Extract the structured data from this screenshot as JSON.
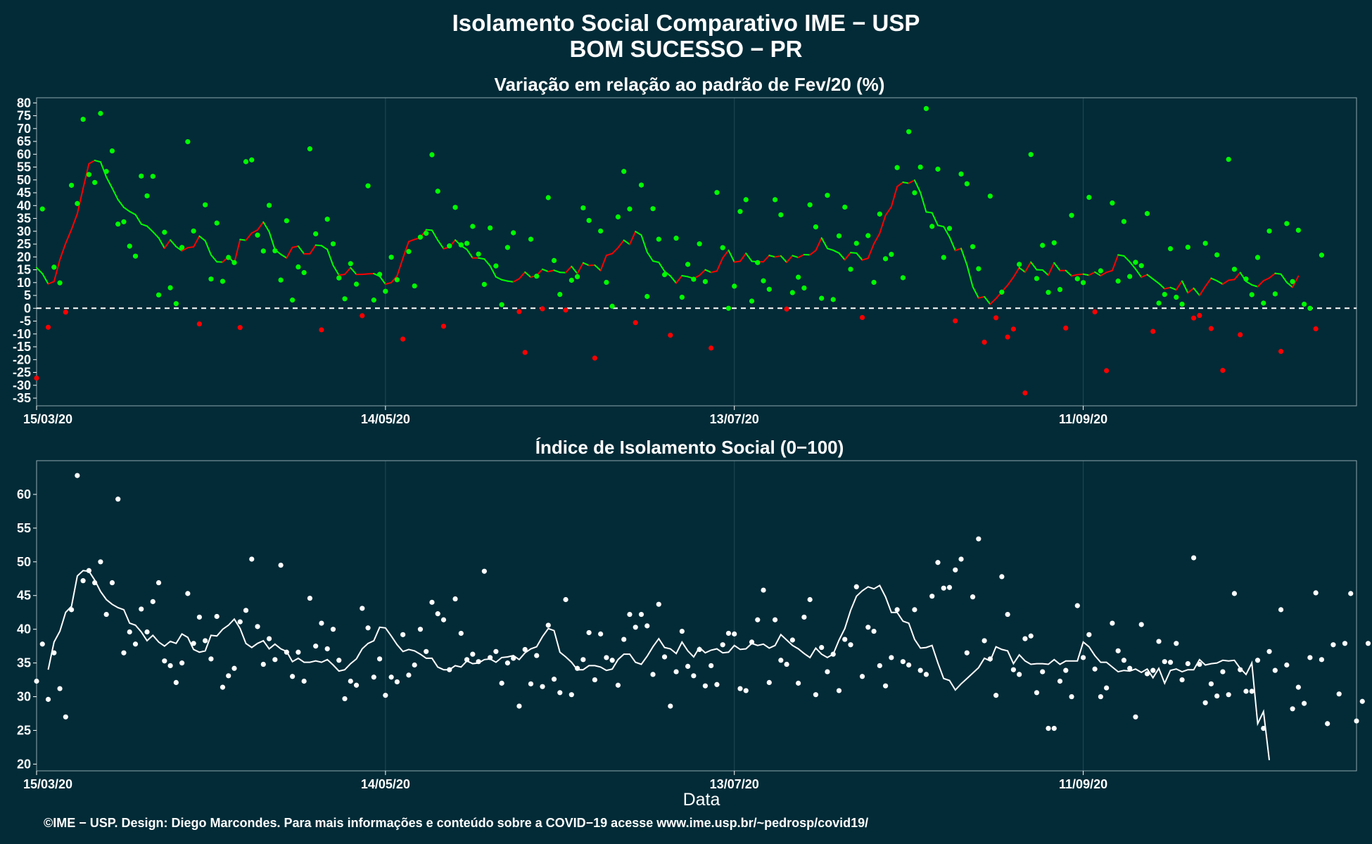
{
  "header": {
    "title_line1": "Isolamento Social Comparativo IME − USP",
    "title_line2": "BOM SUCESSO − PR"
  },
  "footer": {
    "credit": "©IME − USP. Design: Diego Marcondes. Para mais informações e conteúdo sobre a COVID−19 acesse www.ime.usp.br/~pedrosp/covid19/"
  },
  "colors": {
    "background": "#022b37",
    "positive": "#00ff00",
    "negative": "#ff0000",
    "index_series": "#ffffff",
    "grid": "#1d4450"
  },
  "chart_data": [
    {
      "type": "scatter",
      "title": "Variação em relação ao padrão de Fev/20 (%)",
      "xlabel": "",
      "ylabel": "",
      "x_tick_labels": [
        "15/03/20",
        "14/05/20",
        "13/07/20",
        "11/09/20"
      ],
      "x_tick_days": [
        0,
        60,
        120,
        180
      ],
      "xlim_days": [
        0,
        227
      ],
      "ylim": [
        -38,
        82
      ],
      "y_ticks": [
        80,
        75,
        70,
        65,
        60,
        55,
        50,
        45,
        40,
        35,
        30,
        25,
        20,
        15,
        10,
        5,
        0,
        -5,
        -10,
        -15,
        -20,
        -25,
        -30,
        -35
      ],
      "reference_line_y": 0,
      "daily_values": [
        -27.2,
        38.7,
        -7.4,
        16.0,
        9.9,
        -1.5,
        47.9,
        40.8,
        73.6,
        52.1,
        49.0,
        75.9,
        53.3,
        61.3,
        32.8,
        33.7,
        24.2,
        20.3,
        51.5,
        43.8,
        51.4,
        5.2,
        29.6,
        8.0,
        1.8,
        23.7,
        64.9,
        30.1,
        -6.1,
        40.3,
        11.4,
        33.2,
        10.5,
        19.8,
        17.8,
        -7.5,
        57.1,
        57.8,
        28.5,
        22.3,
        40.1,
        22.4,
        11.0,
        34.1,
        3.2,
        16.1,
        13.9,
        62.1,
        29.0,
        -8.4,
        34.7,
        25.1,
        11.8,
        3.7,
        17.4,
        9.4,
        -2.9,
        47.7,
        3.2,
        13.2,
        6.6,
        19.9,
        11.1,
        -12.0,
        22.1,
        8.7,
        27.7,
        29.2,
        59.8,
        45.6,
        -7.0,
        24.3,
        39.3,
        24.7,
        25.3,
        31.9,
        21.1,
        9.3,
        31.3,
        16.5,
        1.4,
        23.7,
        29.4,
        -1.3,
        -17.2,
        26.9,
        12.5,
        -0.2,
        43.1,
        18.6,
        5.4,
        -0.7,
        10.9,
        12.3,
        39.1,
        34.2,
        -19.4,
        30.1,
        10.1,
        0.8,
        35.6,
        53.3,
        38.7,
        -5.6,
        48.0,
        4.6,
        38.8,
        26.9,
        13.1,
        -10.5,
        27.3,
        4.3,
        17.1,
        11.3,
        25.1,
        10.4,
        -15.5,
        45.1,
        23.6,
        0.0,
        8.6,
        37.7,
        42.3,
        2.8,
        17.8,
        10.7,
        7.4,
        42.3,
        36.4,
        -0.3,
        6.1,
        12.1,
        7.9,
        40.3,
        31.7,
        3.9,
        44.0,
        3.4,
        28.2,
        39.4,
        15.2,
        25.3,
        -3.6,
        28.3,
        10.1,
        36.7,
        19.3,
        21.0,
        54.8,
        11.9,
        68.8,
        45.0,
        55.0,
        77.8,
        31.9,
        54.2,
        19.8,
        31.1,
        -4.9,
        52.3,
        48.5,
        24.0,
        15.4,
        -13.2,
        43.7,
        -3.7,
        6.3,
        -11.2,
        -8.1,
        17.1,
        -33.0,
        59.9,
        11.6,
        24.5,
        6.2,
        25.5,
        7.3,
        -7.7,
        36.2,
        11.5,
        10.0,
        43.2,
        -1.4,
        14.6,
        -24.3,
        41.0,
        10.6,
        33.8,
        12.4,
        17.9,
        16.6,
        36.9,
        -9.0,
        2.0,
        5.4,
        23.2,
        4.3,
        1.6,
        23.8,
        -3.8,
        -2.8,
        25.3,
        -7.9,
        20.8,
        -24.2,
        58.0,
        15.2,
        -10.3,
        11.4,
        5.3,
        19.8,
        2.0,
        30.1,
        5.6,
        -16.8,
        33.0,
        10.4,
        30.4,
        1.6,
        0.0,
        -8.0,
        20.7
      ],
      "moving_average_days_start": 0,
      "moving_average": [
        15.8,
        13.5,
        9.5,
        10.4,
        18.9,
        25.3,
        30.7,
        36.8,
        46.7,
        56.3,
        57.6,
        57.0,
        51.1,
        46.8,
        42.3,
        39.3,
        37.7,
        36.5,
        32.8,
        32.0,
        29.8,
        27.4,
        23.4,
        26.6,
        24.0,
        22.4,
        23.6,
        23.9,
        28.1,
        26.3,
        20.8,
        18.1,
        18.0,
        20.1,
        17.6,
        26.8,
        26.5,
        29.3,
        30.5,
        33.6,
        29.8,
        22.8,
        21.0,
        19.6,
        23.7,
        24.2,
        21.2,
        21.2,
        24.6,
        24.4,
        22.9,
        16.7,
        12.9,
        13.2,
        15.8,
        13.2,
        13.2,
        13.4,
        13.5,
        12.5,
        9.4,
        10.0,
        12.6,
        19.5,
        26.0,
        26.8,
        27.5,
        30.6,
        30.4,
        26.5,
        23.2,
        23.8,
        26.6,
        24.4,
        22.9,
        19.6,
        19.6,
        19.2,
        16.5,
        12.2,
        11.1,
        10.6,
        10.3,
        11.5,
        14.1,
        12.1,
        12.8,
        15.2,
        14.3,
        14.8,
        14.0,
        13.9,
        16.3,
        13.5,
        17.7,
        16.7,
        16.8,
        14.7,
        20.6,
        21.3,
        23.6,
        26.5,
        24.9,
        29.9,
        28.5,
        21.9,
        18.4,
        17.9,
        14.4,
        12.6,
        9.8,
        12.7,
        12.3,
        11.6,
        12.8,
        15.0,
        14.0,
        14.5,
        19.6,
        22.6,
        18.0,
        18.3,
        21.4,
        18.3,
        18.1,
        18.1,
        20.6,
        20.0,
        20.4,
        17.9,
        20.5,
        19.8,
        20.9,
        20.8,
        22.5,
        27.4,
        23.3,
        22.6,
        21.5,
        18.9,
        21.7,
        21.5,
        18.8,
        19.5,
        25.1,
        29.2,
        36.2,
        39.5,
        47.4,
        49.1,
        48.7,
        49.9,
        45.1,
        37.5,
        37.2,
        32.3,
        31.8,
        27.8,
        22.5,
        23.3,
        16.9,
        8.4,
        4.0,
        4.5,
        1.6,
        3.8,
        6.4,
        9.0,
        12.1,
        15.8,
        14.1,
        18.0,
        15.0,
        14.9,
        12.9,
        17.7,
        14.7,
        14.7,
        12.6,
        13.1,
        13.3,
        12.9,
        14.1,
        12.7,
        14.0,
        14.7,
        20.8,
        20.4,
        18.1,
        15.3,
        12.1,
        13.1,
        11.4,
        9.7,
        7.6,
        8.1,
        7.2,
        10.6,
        6.0,
        7.8,
        5.0,
        8.5,
        11.7,
        10.7,
        9.4,
        10.9,
        11.2,
        13.9,
        10.5,
        9.1,
        8.4,
        10.7,
        11.8,
        13.6,
        13.3,
        10.1,
        8.2,
        12.5
      ]
    },
    {
      "type": "scatter",
      "title": "Índice de Isolamento Social (0−100)",
      "xlabel": "Data",
      "ylabel": "",
      "x_tick_labels": [
        "15/03/20",
        "14/05/20",
        "13/07/20",
        "11/09/20"
      ],
      "x_tick_days": [
        0,
        60,
        120,
        180
      ],
      "xlim_days": [
        0,
        227
      ],
      "ylim": [
        19,
        65
      ],
      "y_ticks": [
        60,
        55,
        50,
        45,
        40,
        35,
        30,
        25,
        20
      ],
      "daily_values": [
        32.3,
        37.8,
        29.6,
        36.5,
        31.2,
        27.0,
        42.9,
        62.8,
        47.2,
        48.7,
        46.9,
        50.0,
        42.2,
        46.9,
        59.3,
        36.5,
        39.6,
        37.8,
        43.0,
        39.6,
        44.1,
        46.9,
        35.3,
        34.6,
        32.1,
        35.0,
        45.3,
        37.9,
        41.8,
        38.3,
        35.6,
        41.9,
        31.4,
        33.1,
        34.2,
        41.1,
        42.8,
        50.4,
        40.4,
        34.8,
        38.6,
        35.5,
        49.5,
        36.6,
        33.0,
        36.6,
        32.3,
        44.6,
        37.5,
        40.9,
        37.1,
        40.0,
        35.4,
        29.7,
        32.3,
        31.7,
        43.1,
        40.2,
        32.9,
        35.6,
        30.2,
        32.9,
        32.2,
        39.2,
        33.2,
        34.7,
        40.0,
        36.7,
        44.0,
        42.3,
        41.4,
        34.0,
        44.5,
        39.4,
        35.5,
        36.3,
        35.2,
        48.6,
        35.8,
        36.7,
        32.0,
        35.0,
        35.7,
        28.6,
        37.0,
        31.9,
        36.1,
        31.5,
        40.6,
        32.6,
        30.6,
        44.4,
        30.3,
        34.2,
        35.5,
        39.5,
        32.5,
        39.3,
        35.8,
        35.4,
        31.7,
        38.5,
        42.2,
        40.3,
        42.2,
        40.5,
        33.3,
        43.7,
        35.9,
        28.6,
        33.7,
        39.7,
        34.5,
        33.1,
        37.0,
        31.6,
        34.6,
        31.8,
        37.7,
        39.4,
        39.3,
        31.2,
        30.9,
        38.1,
        41.4,
        45.8,
        32.1,
        41.4,
        35.4,
        34.8,
        38.4,
        32.0,
        41.8,
        44.4,
        30.3,
        37.3,
        33.7,
        36.3,
        30.9,
        38.5,
        37.7,
        46.3,
        33.0,
        40.3,
        39.7,
        34.6,
        31.6,
        35.8,
        42.9,
        35.2,
        34.7,
        42.9,
        33.9,
        33.3,
        44.9,
        49.9,
        46.1,
        46.2,
        48.8,
        50.4,
        36.5,
        44.8,
        53.4,
        38.3,
        35.6,
        30.2,
        47.8,
        42.2,
        34.0,
        33.3,
        38.6,
        39.0,
        30.6,
        33.7,
        25.3,
        25.3,
        32.3,
        33.9,
        30.0,
        43.5,
        35.8,
        39.2,
        34.1,
        30.0,
        31.3,
        40.9,
        36.8,
        35.4,
        34.2,
        27.0,
        40.7,
        33.4,
        33.9,
        38.2,
        35.2,
        35.1,
        37.9,
        32.5,
        34.9,
        50.6,
        34.8,
        29.1,
        31.9,
        30.1,
        33.7,
        30.3,
        45.3,
        34.0,
        30.8,
        30.8,
        35.4,
        25.3,
        36.7,
        33.9,
        42.9,
        34.7,
        28.2,
        31.4,
        29.0,
        35.8,
        45.4,
        35.5,
        26.0,
        37.7,
        30.4,
        37.9,
        45.3,
        26.4,
        29.3,
        37.9
      ],
      "moving_average_days_start": 2,
      "moving_average": [
        34.0,
        38.1,
        39.7,
        42.5,
        43.4,
        47.9,
        48.7,
        48.6,
        47.3,
        45.6,
        44.4,
        43.7,
        43.2,
        42.9,
        40.9,
        40.6,
        39.6,
        38.3,
        39.1,
        38.1,
        37.5,
        38.2,
        37.9,
        39.3,
        38.8,
        37.0,
        36.6,
        36.8,
        39.1,
        39.0,
        40.0,
        40.6,
        41.5,
        40.1,
        37.9,
        37.3,
        37.9,
        38.3,
        37.1,
        37.8,
        37.1,
        36.7,
        35.2,
        35.7,
        35.1,
        35.1,
        35.3,
        35.1,
        35.5,
        34.7,
        33.8,
        34.0,
        34.9,
        35.6,
        37.1,
        37.9,
        38.3,
        40.3,
        40.2,
        39.0,
        37.7,
        36.7,
        37.0,
        36.8,
        36.3,
        35.7,
        35.7,
        34.4,
        34.0,
        34.0,
        34.6,
        34.4,
        35.3,
        34.9,
        35.0,
        35.5,
        35.6,
        35.1,
        35.8,
        35.9,
        36.1,
        35.5,
        36.5,
        37.1,
        37.4,
        38.9,
        40.1,
        39.8,
        36.6,
        35.9,
        35.1,
        34.0,
        34.0,
        34.6,
        34.6,
        34.4,
        33.9,
        34.1,
        35.5,
        36.3,
        36.3,
        35.1,
        34.8,
        36.0,
        37.4,
        38.6,
        37.3,
        37.1,
        36.4,
        38.1,
        36.8,
        35.9,
        37.3,
        36.5,
        36.9,
        37.1,
        36.5,
        36.6,
        37.6,
        37.0,
        37.1,
        37.9,
        37.6,
        37.8,
        37.2,
        37.6,
        39.2,
        38.4,
        37.6,
        37.1,
        36.4,
        35.8,
        37.2,
        36.3,
        35.8,
        36.3,
        38.4,
        40.1,
        42.8,
        44.9,
        45.7,
        46.3,
        46.0,
        46.5,
        44.8,
        42.5,
        42.5,
        41.2,
        40.9,
        38.5,
        37.2,
        37.3,
        37.6,
        35.0,
        32.7,
        32.4,
        31.0,
        31.9,
        32.7,
        33.5,
        34.3,
        35.7,
        35.3,
        37.4,
        37.0,
        36.8,
        34.9,
        36.2,
        35.3,
        34.8,
        34.9,
        34.9,
        34.8,
        35.5,
        34.8,
        35.3,
        35.3,
        35.3,
        38.1,
        37.4,
        36.1,
        35.1,
        35.1,
        34.4,
        33.7,
        33.9,
        33.8,
        34.1,
        33.6,
        34.1,
        32.8,
        34.2,
        32.0,
        33.9,
        34.1,
        33.7,
        34.0,
        34.0,
        35.5,
        34.7,
        34.9,
        35.0,
        35.4,
        35.3,
        35.4,
        34.2,
        33.3,
        35.0,
        26.0,
        27.8,
        20.6
      ]
    }
  ]
}
